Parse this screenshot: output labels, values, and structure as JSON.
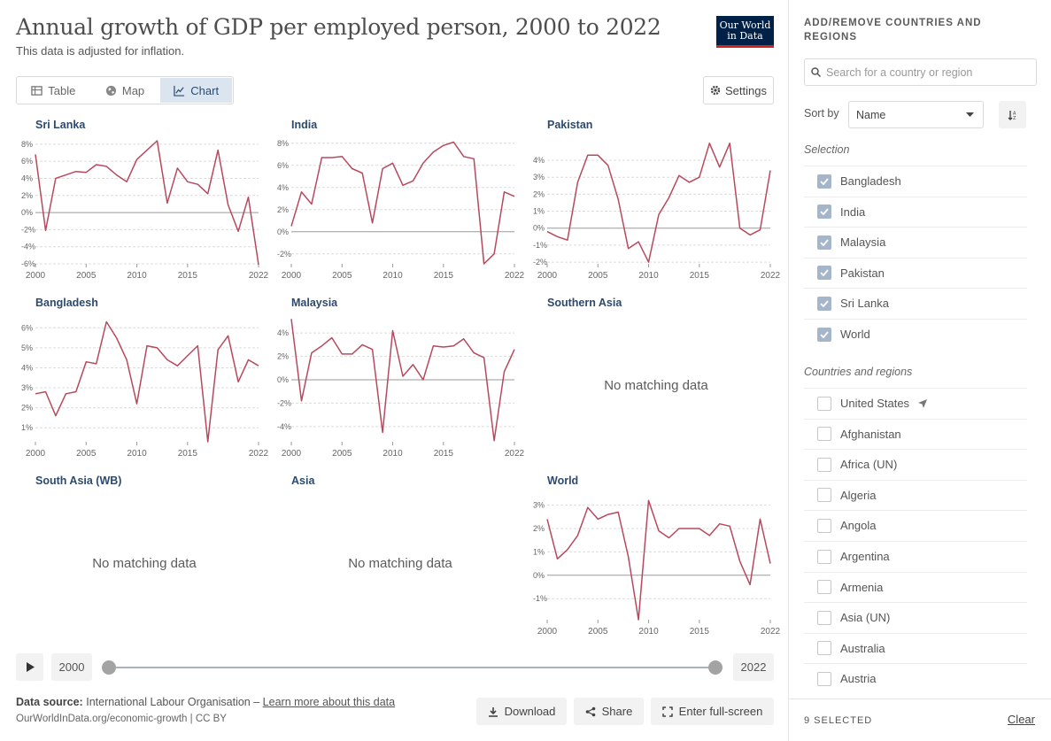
{
  "header": {
    "title": "Annual growth of GDP per employed person, 2000 to 2022",
    "subtitle": "This data is adjusted for inflation.",
    "logo_line1": "Our World",
    "logo_line2": "in Data"
  },
  "tabs": [
    {
      "label": "Table",
      "icon": "table-icon"
    },
    {
      "label": "Map",
      "icon": "globe-icon"
    },
    {
      "label": "Chart",
      "icon": "line-chart-icon",
      "active": true
    }
  ],
  "settings_label": "Settings",
  "no_data_label": "No matching data",
  "line_color": "#b7495e",
  "chart_data": [
    {
      "type": "line",
      "title": "Sri Lanka",
      "x": [
        2000,
        2001,
        2002,
        2003,
        2004,
        2005,
        2006,
        2007,
        2008,
        2009,
        2010,
        2011,
        2012,
        2013,
        2014,
        2015,
        2016,
        2017,
        2018,
        2019,
        2020,
        2021,
        2022
      ],
      "values": [
        6.8,
        -2.1,
        4.0,
        4.4,
        4.8,
        4.7,
        5.6,
        5.4,
        4.4,
        3.6,
        6.2,
        7.3,
        8.4,
        1.1,
        5.2,
        3.6,
        3.3,
        2.2,
        7.3,
        0.9,
        -2.2,
        1.8,
        -6.1
      ],
      "yticks": [
        -6,
        -4,
        -2,
        0,
        2,
        4,
        6,
        8
      ],
      "ylim": [
        -6,
        8.5
      ],
      "unit": "%"
    },
    {
      "type": "line",
      "title": "India",
      "x": [
        2000,
        2001,
        2002,
        2003,
        2004,
        2005,
        2006,
        2007,
        2008,
        2009,
        2010,
        2011,
        2012,
        2013,
        2014,
        2015,
        2016,
        2017,
        2018,
        2019,
        2020,
        2021,
        2022
      ],
      "values": [
        0.5,
        3.6,
        2.5,
        6.7,
        6.7,
        6.8,
        5.7,
        5.3,
        0.8,
        5.7,
        6.2,
        4.2,
        4.6,
        6.2,
        7.2,
        7.8,
        8.1,
        6.8,
        6.6,
        -2.9,
        -2.0,
        3.6,
        3.2
      ],
      "yticks": [
        -2,
        0,
        2,
        4,
        6,
        8
      ],
      "ylim": [
        -2.9,
        8.3
      ],
      "unit": "%"
    },
    {
      "type": "line",
      "title": "Pakistan",
      "x": [
        2000,
        2001,
        2002,
        2003,
        2004,
        2005,
        2006,
        2007,
        2008,
        2009,
        2010,
        2011,
        2012,
        2013,
        2014,
        2015,
        2016,
        2017,
        2018,
        2019,
        2020,
        2021,
        2022
      ],
      "values": [
        -0.2,
        -0.5,
        -0.7,
        2.7,
        4.3,
        4.3,
        3.7,
        1.7,
        -1.2,
        -0.8,
        -2.0,
        0.8,
        1.8,
        3.1,
        2.7,
        3.0,
        5.0,
        3.6,
        5.0,
        0.0,
        -0.4,
        -0.1,
        3.4
      ],
      "yticks": [
        -2,
        -1,
        0,
        1,
        2,
        3,
        4
      ],
      "ylim": [
        -2.1,
        5.2
      ],
      "unit": "%"
    },
    {
      "type": "line",
      "title": "Bangladesh",
      "x": [
        2000,
        2001,
        2002,
        2003,
        2004,
        2005,
        2006,
        2007,
        2008,
        2009,
        2010,
        2011,
        2012,
        2013,
        2014,
        2015,
        2016,
        2017,
        2018,
        2019,
        2020,
        2021,
        2022
      ],
      "values": [
        2.7,
        2.8,
        1.6,
        2.7,
        2.8,
        4.3,
        4.2,
        6.3,
        5.5,
        4.4,
        2.2,
        5.1,
        5.0,
        4.4,
        4.1,
        4.6,
        5.1,
        0.3,
        4.9,
        5.6,
        3.3,
        4.4,
        4.1
      ],
      "yticks": [
        1,
        2,
        3,
        4,
        5,
        6
      ],
      "ylim": [
        0.3,
        6.5
      ],
      "unit": "%"
    },
    {
      "type": "line",
      "title": "Malaysia",
      "x": [
        2000,
        2001,
        2002,
        2003,
        2004,
        2005,
        2006,
        2007,
        2008,
        2009,
        2010,
        2011,
        2012,
        2013,
        2014,
        2015,
        2016,
        2017,
        2018,
        2019,
        2020,
        2021,
        2022
      ],
      "values": [
        5.2,
        -1.8,
        2.3,
        2.9,
        3.6,
        2.2,
        2.2,
        3.0,
        2.6,
        -4.5,
        4.2,
        0.3,
        1.3,
        0.0,
        2.9,
        2.8,
        2.9,
        3.5,
        2.3,
        1.9,
        -5.2,
        0.7,
        2.6
      ],
      "yticks": [
        -4,
        -2,
        0,
        2,
        4
      ],
      "ylim": [
        -5.3,
        5.3
      ],
      "unit": "%"
    },
    {
      "type": "line",
      "title": "Southern Asia",
      "x": [],
      "values": []
    },
    {
      "type": "line",
      "title": "South Asia (WB)",
      "x": [],
      "values": []
    },
    {
      "type": "line",
      "title": "Asia",
      "x": [],
      "values": []
    },
    {
      "type": "line",
      "title": "World",
      "x": [
        2000,
        2001,
        2002,
        2003,
        2004,
        2005,
        2006,
        2007,
        2008,
        2009,
        2010,
        2011,
        2012,
        2013,
        2014,
        2015,
        2016,
        2017,
        2018,
        2019,
        2020,
        2021,
        2022
      ],
      "values": [
        2.4,
        0.7,
        1.1,
        1.7,
        2.9,
        2.4,
        2.6,
        2.7,
        0.8,
        -1.9,
        3.2,
        1.9,
        1.6,
        2.0,
        2.0,
        2.0,
        1.7,
        2.2,
        2.1,
        0.6,
        -0.4,
        2.4,
        0.5
      ],
      "yticks": [
        -1,
        0,
        1,
        2,
        3
      ],
      "ylim": [
        -1.9,
        3.4
      ],
      "unit": "%"
    }
  ],
  "xticks": [
    "2000",
    "2005",
    "2010",
    "2015",
    "2022"
  ],
  "timeline": {
    "start": "2000",
    "end": "2022"
  },
  "footer": {
    "source_label": "Data source:",
    "source_text": "International Labour Organisation –",
    "learn_more": "Learn more about this data",
    "license": "OurWorldInData.org/economic-growth | CC BY",
    "download": "Download",
    "share": "Share",
    "fullscreen": "Enter full-screen"
  },
  "sidebar": {
    "heading": "ADD/REMOVE COUNTRIES AND REGIONS",
    "search_placeholder": "Search for a country or region",
    "sort_label": "Sort by",
    "sort_value": "Name",
    "selection_label": "Selection",
    "selected": [
      "Bangladesh",
      "India",
      "Malaysia",
      "Pakistan",
      "Sri Lanka",
      "World"
    ],
    "regions_label": "Countries and regions",
    "regions": [
      "United States",
      "Afghanistan",
      "Africa (UN)",
      "Algeria",
      "Angola",
      "Argentina",
      "Armenia",
      "Asia (UN)",
      "Australia",
      "Austria"
    ],
    "selected_count": "9 SELECTED",
    "clear": "Clear"
  }
}
